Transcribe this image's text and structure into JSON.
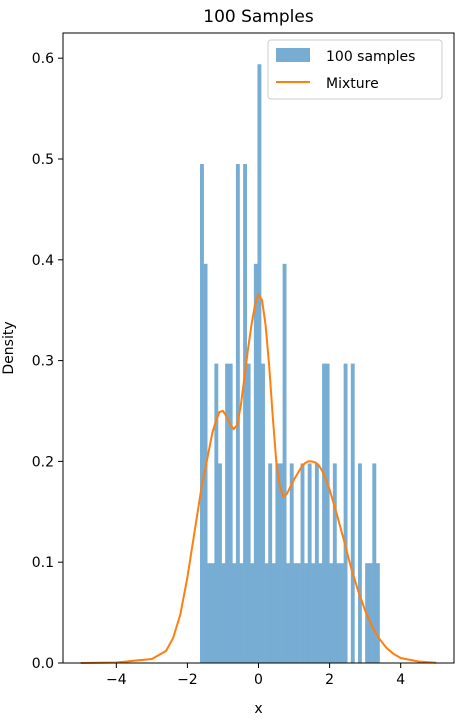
{
  "chart_data": {
    "type": "bar",
    "title": "100 Samples",
    "xlabel": "x",
    "ylabel": "Density",
    "xlim": [
      -5.5,
      5.5
    ],
    "ylim": [
      0,
      0.625
    ],
    "xticks": [
      -4,
      -2,
      0,
      2,
      4
    ],
    "xtick_labels": [
      "−4",
      "−2",
      "0",
      "2",
      "4"
    ],
    "yticks": [
      0.0,
      0.1,
      0.2,
      0.3,
      0.4,
      0.5,
      0.6
    ],
    "ytick_labels": [
      "0.0",
      "0.1",
      "0.2",
      "0.3",
      "0.4",
      "0.5",
      "0.6"
    ],
    "grid": false,
    "legend": {
      "placement": "top-right",
      "entries": [
        {
          "label": "100 samples",
          "kind": "patch",
          "color": "#77acd3"
        },
        {
          "label": "Mixture",
          "kind": "line",
          "color": "#ff7f0e"
        }
      ]
    },
    "series": [
      {
        "name": "100 samples",
        "type": "histogram",
        "color": "#77acd3",
        "bin_width": 0.101,
        "bin_left_edges": [
          -1.645,
          -1.544,
          -1.443,
          -1.342,
          -1.241,
          -1.14,
          -1.039,
          -0.938,
          -0.837,
          -0.736,
          -0.635,
          -0.534,
          -0.433,
          -0.332,
          -0.231,
          -0.13,
          -0.029,
          0.072,
          0.173,
          0.274,
          0.375,
          0.476,
          0.577,
          0.678,
          0.779,
          0.88,
          0.981,
          1.082,
          1.183,
          1.284,
          1.385,
          1.486,
          1.587,
          1.688,
          1.789,
          1.89,
          1.991,
          2.092,
          2.193,
          2.294,
          2.395,
          2.496,
          2.597,
          2.698,
          2.799,
          2.9,
          3.001,
          3.102,
          3.203,
          3.304
        ],
        "values": [
          0.495,
          0.396,
          0.099,
          0.099,
          0.297,
          0.198,
          0.099,
          0.297,
          0.297,
          0.099,
          0.495,
          0.099,
          0.495,
          0.297,
          0.099,
          0.396,
          0.594,
          0.297,
          0.099,
          0.198,
          0.099,
          0.198,
          0.198,
          0.396,
          0.099,
          0.198,
          0.099,
          0.099,
          0.198,
          0.099,
          0.198,
          0.099,
          0.198,
          0.099,
          0.297,
          0.297,
          0.099,
          0.198,
          0.099,
          0.099,
          0.297,
          0.0,
          0.297,
          0.0,
          0.198,
          0.0,
          0.099,
          0.099,
          0.198,
          0.099
        ]
      },
      {
        "name": "Mixture",
        "type": "line",
        "color": "#ff7f0e",
        "x": [
          -5.0,
          -4.0,
          -3.0,
          -2.6,
          -2.4,
          -2.2,
          -2.0,
          -1.8,
          -1.6,
          -1.4,
          -1.3,
          -1.2,
          -1.1,
          -1.0,
          -0.9,
          -0.8,
          -0.7,
          -0.6,
          -0.5,
          -0.4,
          -0.3,
          -0.2,
          -0.1,
          0.0,
          0.1,
          0.2,
          0.3,
          0.4,
          0.5,
          0.6,
          0.7,
          0.8,
          0.9,
          1.0,
          1.1,
          1.2,
          1.3,
          1.4,
          1.5,
          1.6,
          1.7,
          1.8,
          1.9,
          2.0,
          2.2,
          2.4,
          2.6,
          2.8,
          3.0,
          3.2,
          3.4,
          3.6,
          3.8,
          4.0,
          4.5,
          5.0
        ],
        "y": [
          0.0,
          0.0005,
          0.004,
          0.012,
          0.025,
          0.048,
          0.085,
          0.13,
          0.175,
          0.21,
          0.228,
          0.24,
          0.249,
          0.25,
          0.245,
          0.237,
          0.232,
          0.236,
          0.255,
          0.282,
          0.31,
          0.335,
          0.355,
          0.366,
          0.36,
          0.335,
          0.295,
          0.245,
          0.2,
          0.175,
          0.165,
          0.168,
          0.175,
          0.182,
          0.188,
          0.194,
          0.198,
          0.2,
          0.2,
          0.199,
          0.196,
          0.19,
          0.182,
          0.172,
          0.148,
          0.122,
          0.095,
          0.072,
          0.052,
          0.036,
          0.024,
          0.015,
          0.009,
          0.005,
          0.0015,
          0.0003
        ]
      }
    ]
  }
}
